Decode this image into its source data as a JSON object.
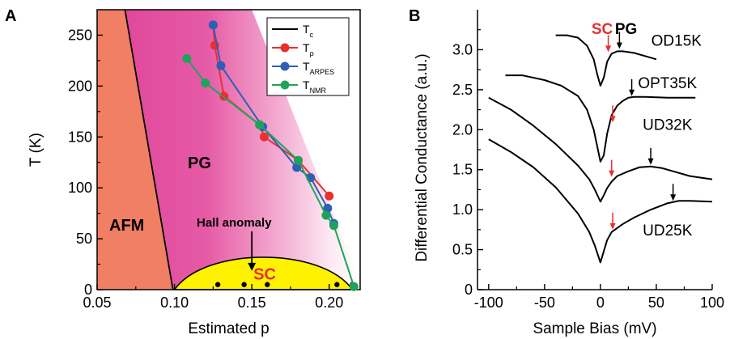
{
  "chart_data": [
    {
      "type": "line",
      "panel_label": "A",
      "xlabel": "Estimated p",
      "ylabel": "T (K)",
      "xlim": [
        0.05,
        0.22
      ],
      "ylim": [
        0,
        275
      ],
      "xticks": [
        0.05,
        0.1,
        0.15,
        0.2
      ],
      "xtick_labels": [
        "0.05",
        "0.10",
        "0.15",
        "0.20"
      ],
      "yticks": [
        0,
        50,
        100,
        150,
        200,
        250
      ],
      "ytick_labels": [
        "0",
        "50",
        "100",
        "150",
        "200",
        "250"
      ],
      "legend_position": "top-right",
      "region_labels": {
        "afm": "AFM",
        "pg": "PG",
        "sc": "SC",
        "hall": "Hall anomaly"
      },
      "afm_boundary": [
        [
          0.068,
          275
        ],
        [
          0.099,
          0
        ]
      ],
      "sc_dome": {
        "x_start": 0.1,
        "x_end": 0.215,
        "x_peak": 0.16,
        "t_peak": 34
      },
      "hall_points": [
        [
          0.128,
          5
        ],
        [
          0.145,
          5
        ],
        [
          0.16,
          5
        ],
        [
          0.205,
          5
        ],
        [
          0.215,
          5
        ]
      ],
      "series": [
        {
          "name": "T",
          "subscript": "c",
          "color": "#000000",
          "style": "line",
          "x": [
            0.1,
            0.112,
            0.125,
            0.137,
            0.15,
            0.16,
            0.172,
            0.185,
            0.197,
            0.208,
            0.215
          ],
          "y": [
            0,
            17,
            26,
            31,
            33.5,
            34,
            33,
            29,
            21,
            10,
            0
          ]
        },
        {
          "name": "T",
          "subscript": "ρ",
          "color": "#e8302e",
          "style": "line-marker",
          "x": [
            0.125,
            0.126,
            0.132,
            0.155,
            0.158,
            0.18,
            0.2
          ],
          "y": [
            260,
            240,
            190,
            162,
            150,
            127,
            92
          ]
        },
        {
          "name": "T",
          "subscript": "ARPES",
          "color": "#2e5fb5",
          "style": "line-marker",
          "x": [
            0.125,
            0.13,
            0.157,
            0.179,
            0.188,
            0.199,
            0.203
          ],
          "y": [
            260,
            220,
            160,
            120,
            110,
            80,
            65
          ]
        },
        {
          "name": "T",
          "subscript": "NMR",
          "color": "#1fa35a",
          "style": "line-marker",
          "x": [
            0.108,
            0.12,
            0.155,
            0.18,
            0.198,
            0.203,
            0.216
          ],
          "y": [
            227,
            203,
            162,
            127,
            73,
            63,
            3
          ]
        }
      ]
    },
    {
      "type": "line",
      "panel_label": "B",
      "xlabel": "Sample Bias (mV)",
      "ylabel": "Differential Conductance (a.u.)",
      "xlim": [
        -110,
        100
      ],
      "ylim": [
        0,
        3.5
      ],
      "xticks": [
        -100,
        -50,
        0,
        50,
        100
      ],
      "xtick_labels": [
        "-100",
        "-50",
        "0",
        "50",
        "100"
      ],
      "yticks": [
        0,
        0.5,
        1.0,
        1.5,
        2.0,
        2.5,
        3.0
      ],
      "ytick_labels": [
        "0",
        "0.5",
        "1.0",
        "1.5",
        "2.0",
        "2.5",
        "3.0"
      ],
      "header_labels": {
        "sc": "SC",
        "pg": "PG"
      },
      "arrow_color_sc": "#e8302e",
      "arrow_color_pg": "#000000",
      "series": [
        {
          "name": "OD15K",
          "label_xy": [
            68,
            3.05
          ],
          "x": [
            -40,
            -30,
            -20,
            -12,
            -6,
            -3,
            0,
            3,
            6,
            10,
            15,
            20,
            25,
            30,
            40,
            50
          ],
          "y": [
            3.18,
            3.18,
            3.15,
            3.05,
            2.88,
            2.7,
            2.55,
            2.65,
            2.85,
            2.95,
            2.98,
            2.98,
            2.97,
            2.96,
            2.92,
            2.88
          ],
          "arrows": [
            {
              "x": 7,
              "y_tip": 2.98,
              "kind": "sc"
            },
            {
              "x": 17,
              "y_tip": 3.02,
              "kind": "pg"
            }
          ]
        },
        {
          "name": "OPT35K",
          "label_xy": [
            60,
            2.52
          ],
          "x": [
            -85,
            -70,
            -50,
            -35,
            -20,
            -12,
            -6,
            -3,
            0,
            3,
            6,
            10,
            15,
            20,
            25,
            30,
            40,
            60,
            85
          ],
          "y": [
            2.68,
            2.68,
            2.62,
            2.55,
            2.42,
            2.25,
            2.0,
            1.8,
            1.6,
            1.68,
            1.95,
            2.18,
            2.3,
            2.36,
            2.4,
            2.41,
            2.41,
            2.4,
            2.4
          ],
          "arrows": [
            {
              "x": 11,
              "y_tip": 2.1,
              "kind": "sc"
            },
            {
              "x": 28,
              "y_tip": 2.43,
              "kind": "pg"
            }
          ]
        },
        {
          "name": "UD32K",
          "label_xy": [
            60,
            2.0
          ],
          "x": [
            -100,
            -80,
            -60,
            -40,
            -20,
            -10,
            -5,
            0,
            3,
            6,
            10,
            15,
            25,
            35,
            45,
            55,
            65,
            80,
            100
          ],
          "y": [
            2.4,
            2.25,
            2.05,
            1.82,
            1.55,
            1.38,
            1.25,
            1.1,
            1.18,
            1.27,
            1.35,
            1.42,
            1.48,
            1.53,
            1.54,
            1.52,
            1.48,
            1.42,
            1.38
          ],
          "arrows": [
            {
              "x": 10,
              "y_tip": 1.42,
              "kind": "sc"
            },
            {
              "x": 45,
              "y_tip": 1.57,
              "kind": "pg"
            }
          ]
        },
        {
          "name": "UD25K",
          "label_xy": [
            60,
            0.68
          ],
          "x": [
            -100,
            -80,
            -60,
            -40,
            -20,
            -10,
            -5,
            0,
            3,
            6,
            10,
            20,
            30,
            45,
            60,
            70,
            80,
            100
          ],
          "y": [
            1.88,
            1.72,
            1.53,
            1.28,
            0.95,
            0.72,
            0.55,
            0.34,
            0.48,
            0.62,
            0.72,
            0.82,
            0.9,
            1.0,
            1.08,
            1.11,
            1.11,
            1.1
          ],
          "arrows": [
            {
              "x": 11,
              "y_tip": 0.76,
              "kind": "sc"
            },
            {
              "x": 65,
              "y_tip": 1.12,
              "kind": "pg"
            }
          ]
        }
      ]
    }
  ]
}
